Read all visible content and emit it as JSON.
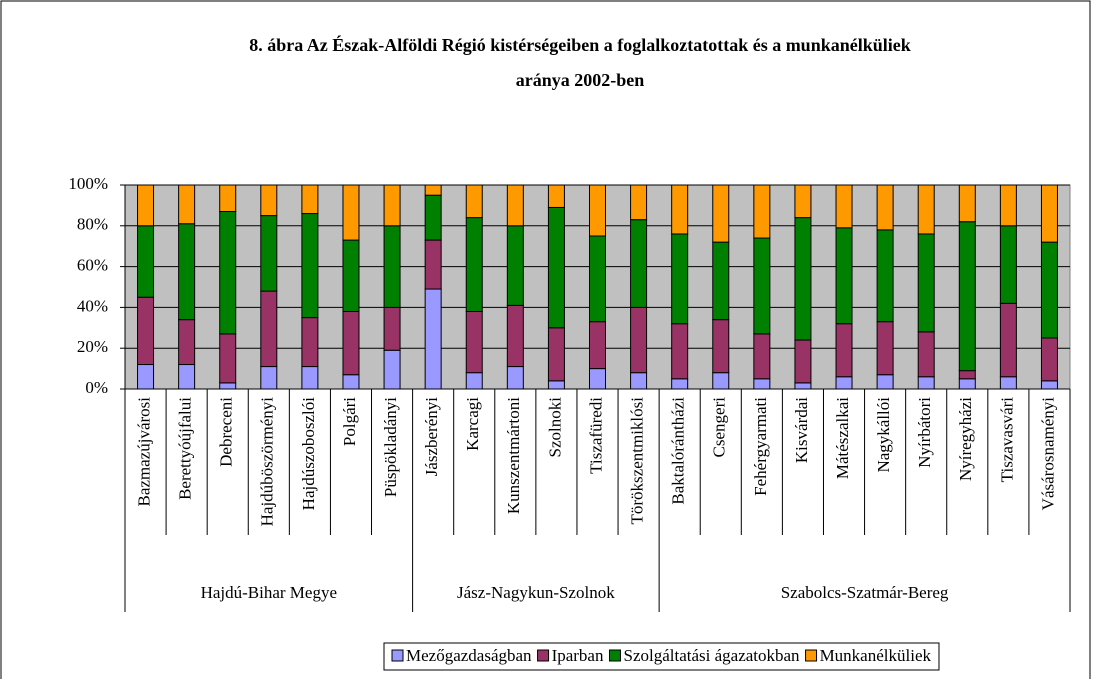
{
  "chart_data": {
    "type": "stacked_bar",
    "title": [
      "8.  ábra Az Észak-Alföldi Régió kistérségeiben a foglalkoztatottak és a munkanélküliek",
      "aránya 2002-ben"
    ],
    "categories": [
      "Bazmazújvárosi",
      "Berettyóújfalui",
      "Debreceni",
      "Hajdúböszörményi",
      "Hajdúszoboszlói",
      "Polgári",
      "Püspökladányi",
      "Jászberényi",
      "Karcagi",
      "Kunszentmártoni",
      "Szolnoki",
      "Tiszafüredi",
      "Törökszentmiklósi",
      "Baktalórántházi",
      "Csengeri",
      "Fehérgyarmati",
      "Kisvárdai",
      "Mátészalkai",
      "Nagykállói",
      "Nyírbátori",
      "Nyíregyházi",
      "Tiszavasvári",
      "Vásárosnaményi"
    ],
    "groups": [
      {
        "label": "Hajdú-Bihar Megye",
        "size": 7
      },
      {
        "label": "Jász-Nagykun-Szolnok",
        "size": 6
      },
      {
        "label": "Szabolcs-Szatmár-Bereg",
        "size": 10
      }
    ],
    "series": [
      {
        "name": "Mezőgazdaságban",
        "color": "#9999ff",
        "values": [
          12,
          12,
          3,
          11,
          11,
          7,
          19,
          49,
          8,
          11,
          4,
          10,
          8,
          5,
          8,
          5,
          3,
          6,
          7,
          6,
          5,
          6,
          4
        ]
      },
      {
        "name": "Iparban",
        "color": "#993366",
        "values": [
          33,
          22,
          24,
          37,
          24,
          31,
          21,
          24,
          30,
          30,
          26,
          23,
          32,
          27,
          26,
          22,
          21,
          26,
          26,
          22,
          4,
          36,
          21
        ]
      },
      {
        "name": "Szolgáltatási ágazatokban",
        "color": "#008000",
        "values": [
          35,
          47,
          60,
          37,
          51,
          35,
          40,
          22,
          46,
          39,
          59,
          42,
          43,
          44,
          38,
          47,
          60,
          47,
          45,
          48,
          73,
          38,
          47
        ]
      },
      {
        "name": "Munkanélküliek",
        "color": "#ff9900",
        "values": [
          20,
          19,
          13,
          15,
          14,
          27,
          20,
          5,
          16,
          20,
          11,
          25,
          17,
          24,
          28,
          26,
          16,
          21,
          22,
          24,
          18,
          20,
          28
        ]
      }
    ],
    "ylim": [
      0,
      100
    ],
    "yticks": [
      {
        "value": 0,
        "label": "0%"
      },
      {
        "value": 20,
        "label": "20%"
      },
      {
        "value": 40,
        "label": "40%"
      },
      {
        "value": 60,
        "label": "60%"
      },
      {
        "value": 80,
        "label": "80%"
      },
      {
        "value": 100,
        "label": "100%"
      }
    ],
    "grid": true,
    "legend": "bottom"
  }
}
